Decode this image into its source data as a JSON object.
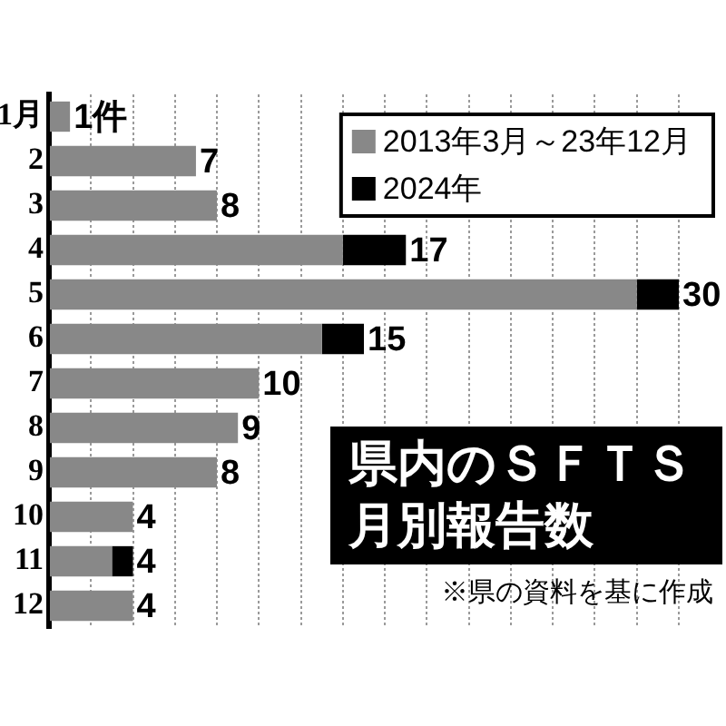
{
  "chart_data": {
    "type": "bar",
    "orientation": "horizontal",
    "stacked": true,
    "title": "県内のＳＦＴＳ月別報告数",
    "annotations": [
      "※県の資料を基に作成"
    ],
    "categories": [
      "1月",
      "2",
      "3",
      "4",
      "5",
      "6",
      "7",
      "8",
      "9",
      "10",
      "11",
      "12"
    ],
    "series": [
      {
        "name": "2013年3月～23年12月",
        "color": "#888888",
        "values": [
          1,
          7,
          8,
          14,
          28,
          13,
          10,
          9,
          8,
          4,
          3,
          4
        ],
        "value_labels": [
          "1件",
          "7",
          "8",
          null,
          null,
          null,
          "10",
          "9",
          "8",
          "4",
          null,
          "4"
        ]
      },
      {
        "name": "2024年",
        "color": "#000000",
        "values": [
          null,
          null,
          null,
          3,
          2,
          2,
          null,
          null,
          null,
          null,
          1,
          null
        ]
      }
    ],
    "totals": [
      null,
      null,
      null,
      "17",
      "30",
      "15",
      null,
      null,
      null,
      null,
      "4",
      null
    ],
    "grid": "x",
    "legend": "top right",
    "tick_labels": "y"
  }
}
